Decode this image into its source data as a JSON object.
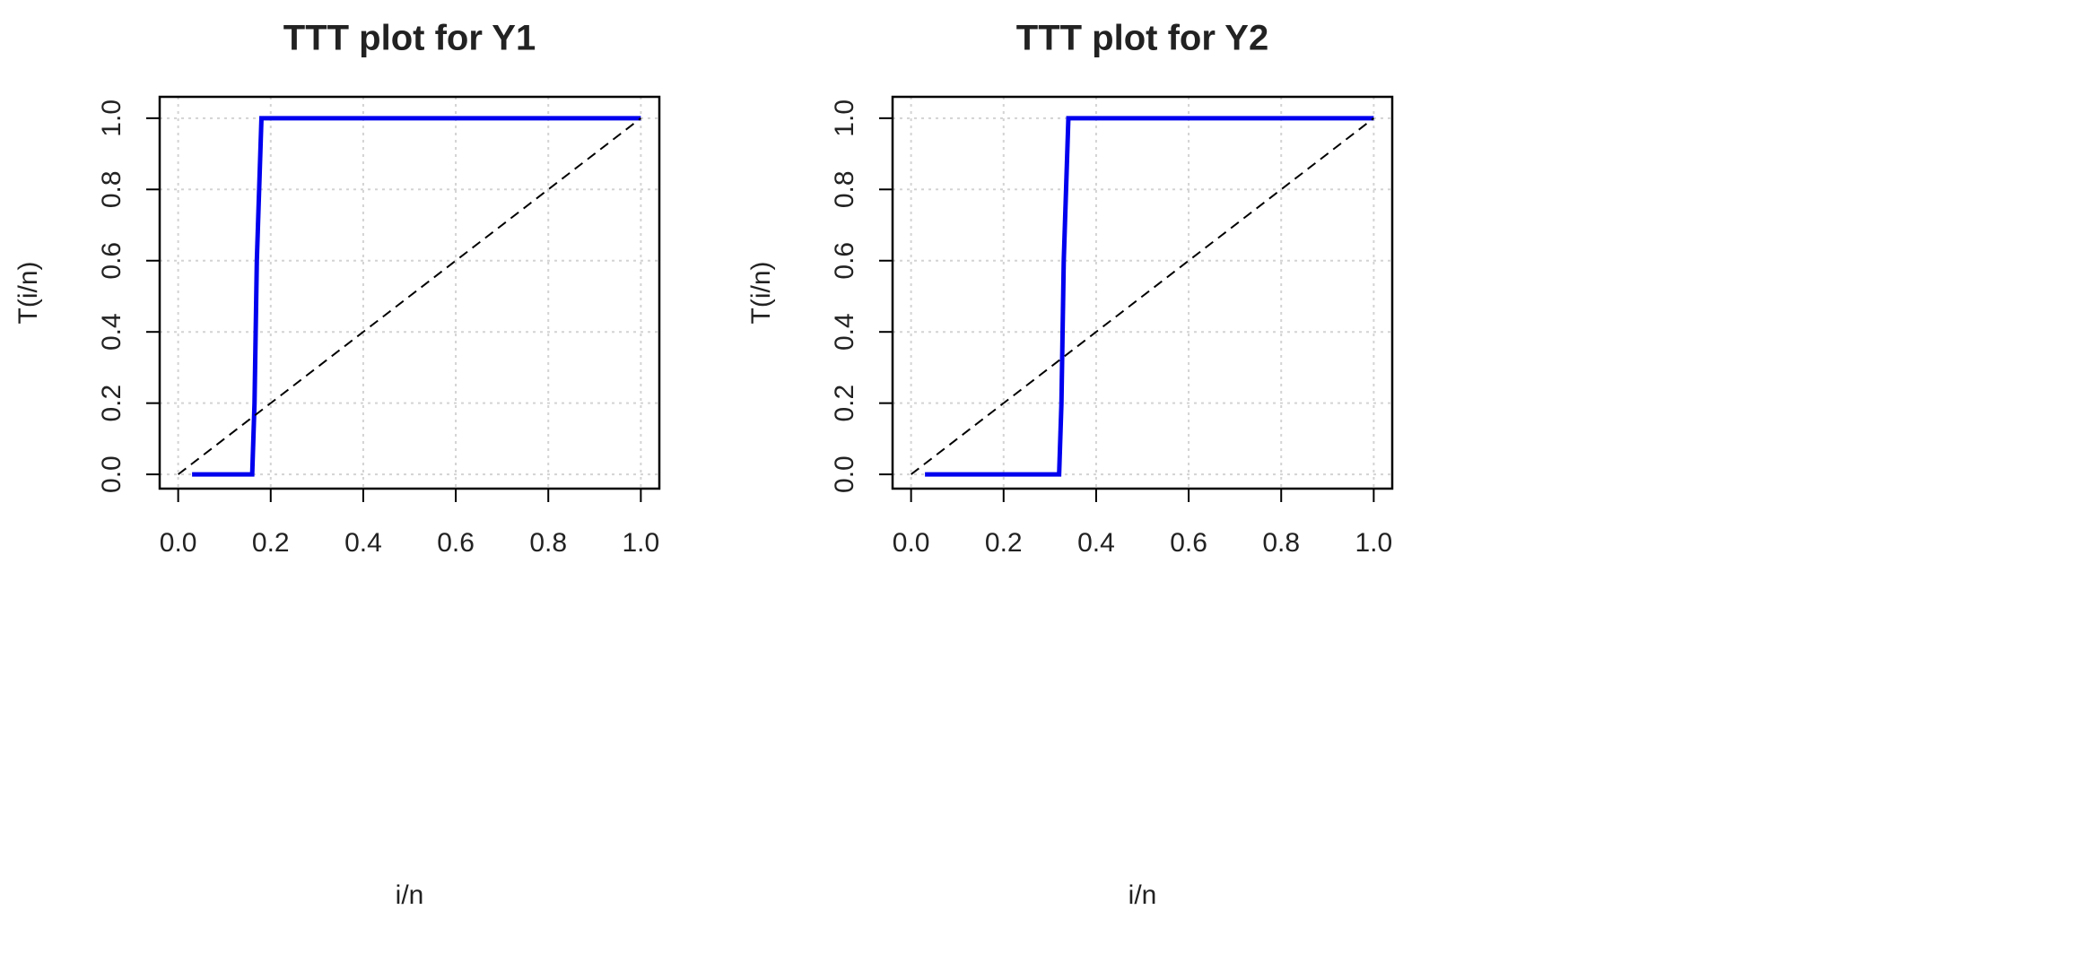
{
  "chart_data": [
    {
      "type": "line",
      "title": "TTT plot for Y1",
      "x_label": "i/n",
      "y_label": "T(i/n)",
      "xlim": [
        -0.04,
        1.04
      ],
      "ylim": [
        -0.04,
        1.06
      ],
      "xticks": [
        {
          "value": 0,
          "label": "0.0"
        },
        0.2,
        0.4,
        0.6,
        0.8,
        {
          "value": 1,
          "label": "1.0"
        }
      ],
      "yticks": [
        {
          "value": 0,
          "label": "0.0"
        },
        0.2,
        0.4,
        0.6,
        0.8,
        {
          "value": 1,
          "label": "1.0"
        }
      ],
      "grid": true,
      "series": [
        {
          "color": "#0000ee",
          "x": [
            0.03,
            0.16,
            0.165,
            0.17,
            0.175,
            0.18,
            1.0
          ],
          "values": [
            0,
            0,
            0.2,
            0.6,
            0.8,
            1,
            1
          ]
        },
        {
          "color": "#000000",
          "dashed": true,
          "x": [
            0,
            1
          ],
          "values": [
            0,
            1
          ]
        }
      ]
    },
    {
      "type": "line",
      "title": "TTT plot for Y2",
      "x_label": "i/n",
      "y_label": "T(i/n)",
      "xlim": [
        -0.04,
        1.04
      ],
      "ylim": [
        -0.04,
        1.06
      ],
      "xticks": [
        {
          "value": 0,
          "label": "0.0"
        },
        0.2,
        0.4,
        0.6,
        0.8,
        {
          "value": 1,
          "label": "1.0"
        }
      ],
      "yticks": [
        {
          "value": 0,
          "label": "0.0"
        },
        0.2,
        0.4,
        0.6,
        0.8,
        {
          "value": 1,
          "label": "1.0"
        }
      ],
      "grid": true,
      "series": [
        {
          "color": "#0000ee",
          "x": [
            0.03,
            0.32,
            0.325,
            0.33,
            0.335,
            0.34,
            1.0
          ],
          "values": [
            0,
            0,
            0.2,
            0.6,
            0.8,
            1,
            1
          ]
        },
        {
          "color": "#000000",
          "dashed": true,
          "x": [
            0,
            1
          ],
          "values": [
            0,
            1
          ]
        }
      ]
    }
  ]
}
